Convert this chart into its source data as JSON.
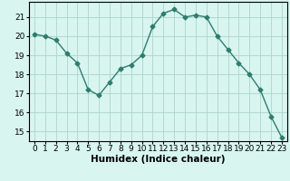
{
  "x": [
    0,
    1,
    2,
    3,
    4,
    5,
    6,
    7,
    8,
    9,
    10,
    11,
    12,
    13,
    14,
    15,
    16,
    17,
    18,
    19,
    20,
    21,
    22,
    23
  ],
  "y": [
    20.1,
    20.0,
    19.8,
    19.1,
    18.6,
    17.2,
    16.9,
    17.6,
    18.3,
    18.5,
    19.0,
    20.5,
    21.2,
    21.4,
    21.0,
    21.1,
    21.0,
    20.0,
    19.3,
    18.6,
    18.0,
    17.2,
    15.8,
    14.7
  ],
  "line_color": "#2e7d6e",
  "marker": "D",
  "markersize": 2.5,
  "linewidth": 1.0,
  "bg_color": "#d8f5f0",
  "grid_color": "#aed4cc",
  "xlabel": "Humidex (Indice chaleur)",
  "ylim": [
    14.5,
    21.8
  ],
  "yticks": [
    15,
    16,
    17,
    18,
    19,
    20,
    21
  ],
  "xticks": [
    0,
    1,
    2,
    3,
    4,
    5,
    6,
    7,
    8,
    9,
    10,
    11,
    12,
    13,
    14,
    15,
    16,
    17,
    18,
    19,
    20,
    21,
    22,
    23
  ],
  "xlabel_fontsize": 7.5,
  "tick_fontsize": 6.5
}
